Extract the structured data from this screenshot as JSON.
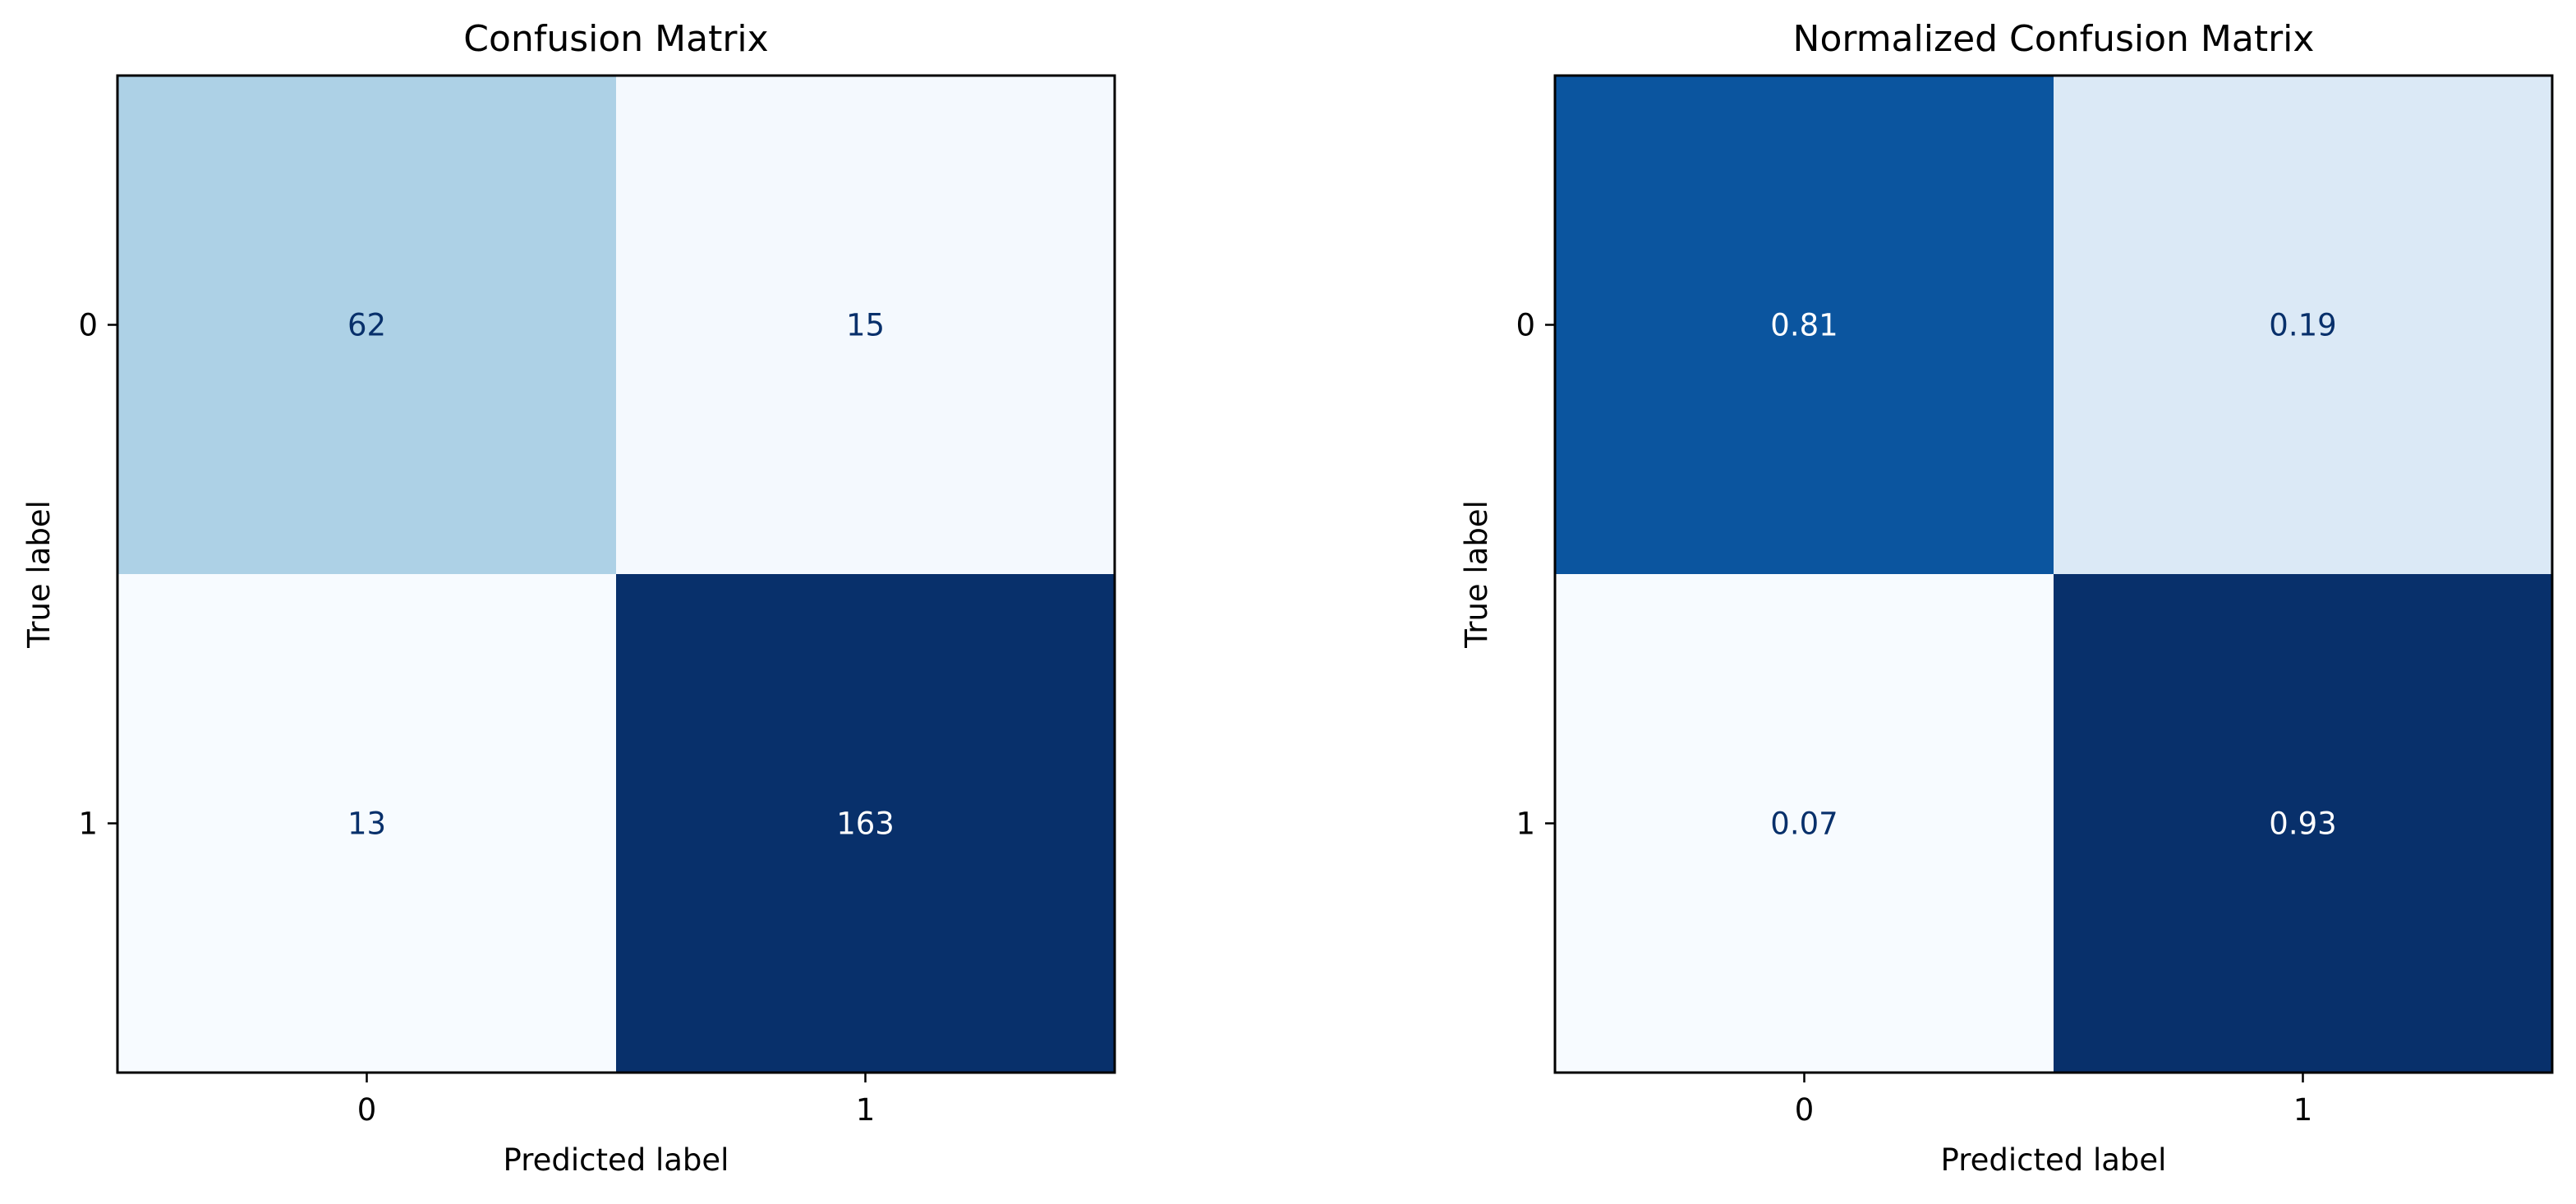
{
  "chart_data": [
    {
      "type": "heatmap",
      "title": "Confusion Matrix",
      "xlabel": "Predicted label",
      "ylabel": "True label",
      "x_categories": [
        "0",
        "1"
      ],
      "y_categories": [
        "0",
        "1"
      ],
      "values": [
        [
          62,
          15
        ],
        [
          13,
          163
        ]
      ],
      "value_labels": [
        [
          "62",
          "15"
        ],
        [
          "13",
          "163"
        ]
      ],
      "color_range": [
        13,
        163
      ],
      "colormap": "Blues",
      "grid": false
    },
    {
      "type": "heatmap",
      "title": "Normalized Confusion Matrix",
      "xlabel": "Predicted label",
      "ylabel": "True label",
      "x_categories": [
        "0",
        "1"
      ],
      "y_categories": [
        "0",
        "1"
      ],
      "values": [
        [
          0.81,
          0.19
        ],
        [
          0.07,
          0.93
        ]
      ],
      "value_labels": [
        [
          "0.81",
          "0.19"
        ],
        [
          "0.07",
          "0.93"
        ]
      ],
      "color_range": [
        0.07,
        0.93
      ],
      "colormap": "Blues",
      "grid": false
    }
  ]
}
